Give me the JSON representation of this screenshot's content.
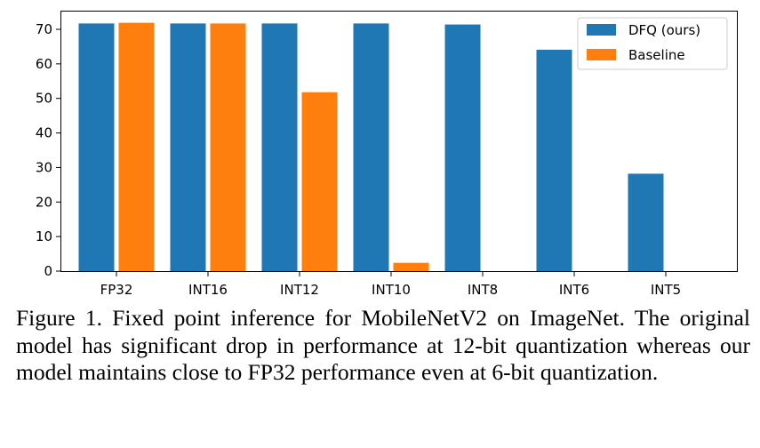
{
  "chart_data": {
    "type": "bar",
    "categories": [
      "FP32",
      "INT16",
      "INT12",
      "INT10",
      "INT8",
      "INT6",
      "INT5"
    ],
    "series": [
      {
        "name": "DFQ (ours)",
        "color": "#1f77b4",
        "values": [
          71.7,
          71.7,
          71.7,
          71.7,
          71.4,
          64.1,
          28.2
        ]
      },
      {
        "name": "Baseline",
        "color": "#ff7f0e",
        "values": [
          71.9,
          71.7,
          51.8,
          2.4,
          null,
          null,
          null
        ]
      }
    ],
    "ylim": [
      0,
      75
    ],
    "yticks": [
      0,
      10,
      20,
      30,
      40,
      50,
      60,
      70
    ],
    "title": "",
    "xlabel": "",
    "ylabel": "",
    "grid": false,
    "legend_position": "top-right"
  },
  "caption": "Figure 1. Fixed point inference for MobileNetV2 on ImageNet. The original model has significant drop in performance at 12-bit quantization whereas our model maintains close to FP32 performance even at 6-bit quantization."
}
